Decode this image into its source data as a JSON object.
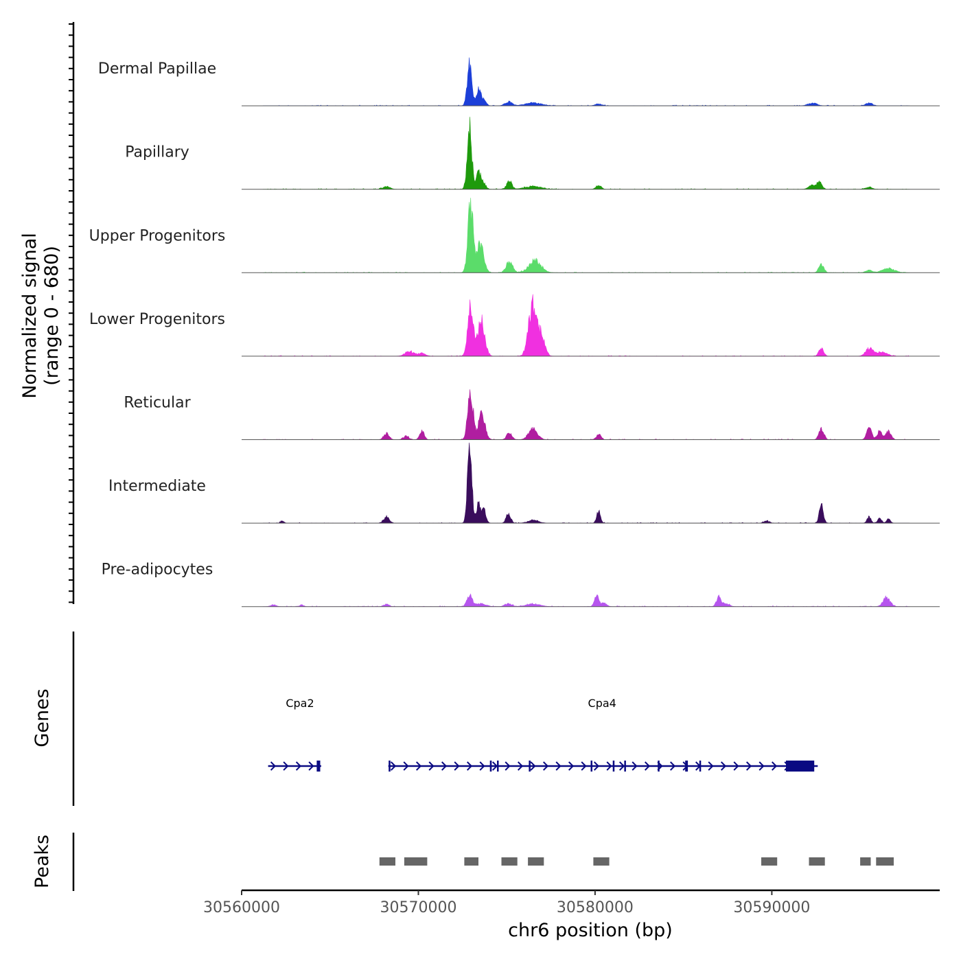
{
  "chart_data": {
    "type": "area",
    "title": "",
    "ylabel_line1": "Normalized signal",
    "ylabel_line2": "(range 0 - 680)",
    "xlabel": "chr6 position (bp)",
    "xlim": [
      30560000,
      30599500
    ],
    "ylim": [
      0,
      680
    ],
    "x_ticks": [
      30560000,
      30570000,
      30580000,
      30590000
    ],
    "x_tick_labels": [
      "30560000",
      "30570000",
      "30580000",
      "30590000"
    ],
    "series": [
      {
        "name": "Dermal Papillae",
        "color": "#1c3fd8",
        "peaks": [
          {
            "pos": 30572900,
            "h": 340,
            "w": 130
          },
          {
            "pos": 30573400,
            "h": 120,
            "w": 110
          },
          {
            "pos": 30573650,
            "h": 55,
            "w": 150
          },
          {
            "pos": 30575100,
            "h": 35,
            "w": 200
          },
          {
            "pos": 30576500,
            "h": 25,
            "w": 450
          },
          {
            "pos": 30580200,
            "h": 14,
            "w": 200
          },
          {
            "pos": 30592300,
            "h": 22,
            "w": 250
          },
          {
            "pos": 30595500,
            "h": 22,
            "w": 200
          }
        ]
      },
      {
        "name": "Papillary",
        "color": "#1e9a0c",
        "peaks": [
          {
            "pos": 30568200,
            "h": 22,
            "w": 200
          },
          {
            "pos": 30572900,
            "h": 500,
            "w": 130
          },
          {
            "pos": 30573400,
            "h": 130,
            "w": 110
          },
          {
            "pos": 30573650,
            "h": 60,
            "w": 150
          },
          {
            "pos": 30575150,
            "h": 65,
            "w": 150
          },
          {
            "pos": 30576500,
            "h": 25,
            "w": 450
          },
          {
            "pos": 30580200,
            "h": 35,
            "w": 140
          },
          {
            "pos": 30592300,
            "h": 35,
            "w": 200
          },
          {
            "pos": 30592700,
            "h": 55,
            "w": 140
          },
          {
            "pos": 30595500,
            "h": 20,
            "w": 180
          }
        ]
      },
      {
        "name": "Upper Progenitors",
        "color": "#5bdc6a",
        "peaks": [
          {
            "pos": 30572950,
            "h": 540,
            "w": 150
          },
          {
            "pos": 30573500,
            "h": 230,
            "w": 200
          },
          {
            "pos": 30575150,
            "h": 90,
            "w": 180
          },
          {
            "pos": 30576600,
            "h": 100,
            "w": 350
          },
          {
            "pos": 30592800,
            "h": 75,
            "w": 140
          },
          {
            "pos": 30595500,
            "h": 22,
            "w": 180
          },
          {
            "pos": 30596600,
            "h": 35,
            "w": 350
          }
        ]
      },
      {
        "name": "Lower Progenitors",
        "color": "#f030e0",
        "peaks": [
          {
            "pos": 30569500,
            "h": 40,
            "w": 250
          },
          {
            "pos": 30570200,
            "h": 25,
            "w": 200
          },
          {
            "pos": 30572950,
            "h": 400,
            "w": 160
          },
          {
            "pos": 30573550,
            "h": 300,
            "w": 200
          },
          {
            "pos": 30576450,
            "h": 420,
            "w": 220
          },
          {
            "pos": 30576950,
            "h": 180,
            "w": 200
          },
          {
            "pos": 30592800,
            "h": 60,
            "w": 140
          },
          {
            "pos": 30595500,
            "h": 65,
            "w": 200
          },
          {
            "pos": 30596200,
            "h": 35,
            "w": 300
          }
        ]
      },
      {
        "name": "Reticular",
        "color": "#b01ea0",
        "peaks": [
          {
            "pos": 30568200,
            "h": 50,
            "w": 150
          },
          {
            "pos": 30569300,
            "h": 30,
            "w": 150
          },
          {
            "pos": 30570200,
            "h": 70,
            "w": 130
          },
          {
            "pos": 30572950,
            "h": 420,
            "w": 150
          },
          {
            "pos": 30573600,
            "h": 220,
            "w": 180
          },
          {
            "pos": 30575150,
            "h": 55,
            "w": 150
          },
          {
            "pos": 30576500,
            "h": 90,
            "w": 250
          },
          {
            "pos": 30580200,
            "h": 45,
            "w": 130
          },
          {
            "pos": 30592800,
            "h": 95,
            "w": 140
          },
          {
            "pos": 30595500,
            "h": 105,
            "w": 140
          },
          {
            "pos": 30596100,
            "h": 70,
            "w": 140
          },
          {
            "pos": 30596600,
            "h": 70,
            "w": 140
          }
        ]
      },
      {
        "name": "Intermediate",
        "color": "#3a0d5c",
        "peaks": [
          {
            "pos": 30562300,
            "h": 20,
            "w": 100
          },
          {
            "pos": 30568200,
            "h": 55,
            "w": 150
          },
          {
            "pos": 30572900,
            "h": 680,
            "w": 120
          },
          {
            "pos": 30573400,
            "h": 150,
            "w": 120
          },
          {
            "pos": 30573700,
            "h": 110,
            "w": 120
          },
          {
            "pos": 30575100,
            "h": 80,
            "w": 130
          },
          {
            "pos": 30576500,
            "h": 25,
            "w": 300
          },
          {
            "pos": 30580200,
            "h": 95,
            "w": 110
          },
          {
            "pos": 30589700,
            "h": 20,
            "w": 150
          },
          {
            "pos": 30592800,
            "h": 175,
            "w": 110
          },
          {
            "pos": 30595500,
            "h": 55,
            "w": 110
          },
          {
            "pos": 30596100,
            "h": 40,
            "w": 110
          },
          {
            "pos": 30596600,
            "h": 35,
            "w": 110
          }
        ]
      },
      {
        "name": "Pre-adipocytes",
        "color": "#b655ee",
        "peaks": [
          {
            "pos": 30561800,
            "h": 15,
            "w": 150
          },
          {
            "pos": 30563400,
            "h": 15,
            "w": 100
          },
          {
            "pos": 30568200,
            "h": 20,
            "w": 150
          },
          {
            "pos": 30572900,
            "h": 90,
            "w": 150
          },
          {
            "pos": 30573500,
            "h": 25,
            "w": 300
          },
          {
            "pos": 30575100,
            "h": 25,
            "w": 200
          },
          {
            "pos": 30576500,
            "h": 20,
            "w": 400
          },
          {
            "pos": 30580100,
            "h": 85,
            "w": 130
          },
          {
            "pos": 30580500,
            "h": 30,
            "w": 150
          },
          {
            "pos": 30587000,
            "h": 80,
            "w": 130
          },
          {
            "pos": 30587400,
            "h": 25,
            "w": 200
          },
          {
            "pos": 30596500,
            "h": 75,
            "w": 200
          }
        ]
      }
    ],
    "genes": {
      "title": "Genes",
      "color": "#0a0a82",
      "items": [
        {
          "name": "Cpa2",
          "label_pos": 30563300,
          "start": 30561500,
          "end": 30564500,
          "exons": [
            [
              30564250,
              30564450
            ]
          ]
        },
        {
          "name": "Cpa4",
          "label_pos": 30580400,
          "start": 30568300,
          "end": 30592600,
          "exons": [
            [
              30568320,
              30568420
            ],
            [
              30574050,
              30574150
            ],
            [
              30574450,
              30574500
            ],
            [
              30576250,
              30576300
            ],
            [
              30579750,
              30579800
            ],
            [
              30581000,
              30581050
            ],
            [
              30581650,
              30581700
            ],
            [
              30583550,
              30583600
            ],
            [
              30585100,
              30585250
            ],
            [
              30585900,
              30585950
            ],
            [
              30590800,
              30592400
            ]
          ]
        }
      ]
    },
    "peaks_track": {
      "title": "Peaks",
      "color": "#666666",
      "regions": [
        [
          30567800,
          30568700
        ],
        [
          30569200,
          30570500
        ],
        [
          30572600,
          30573400
        ],
        [
          30574700,
          30575600
        ],
        [
          30576200,
          30577100
        ],
        [
          30579900,
          30580800
        ],
        [
          30589400,
          30590300
        ],
        [
          30592100,
          30593000
        ],
        [
          30595000,
          30595600
        ],
        [
          30595900,
          30596900
        ]
      ]
    }
  }
}
